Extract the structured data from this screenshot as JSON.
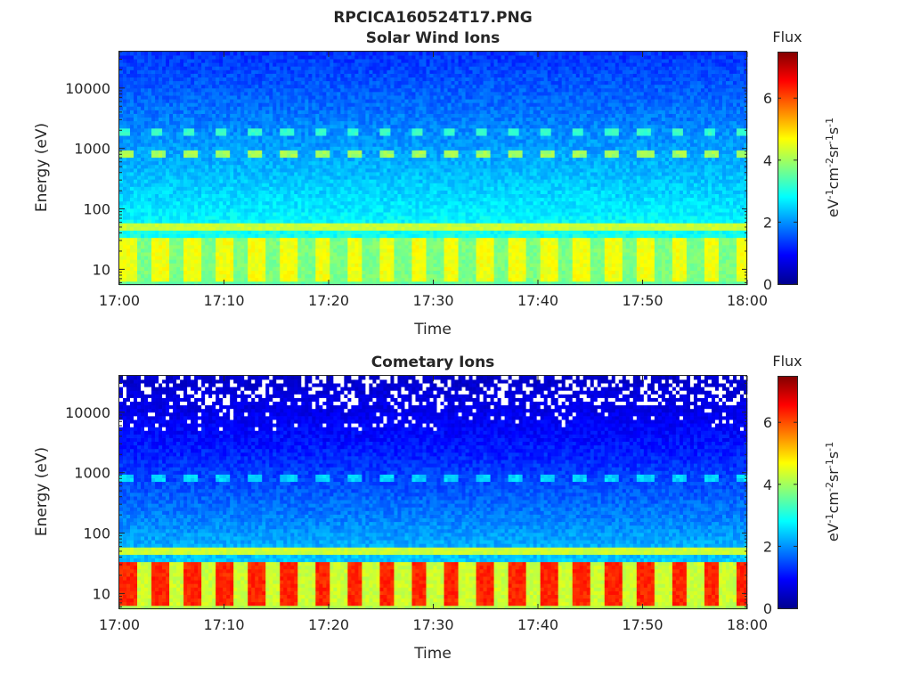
{
  "figure_title": "RPCICA160524T17.PNG",
  "colormap": [
    "#00008f",
    "#0000ff",
    "#0080ff",
    "#00ffff",
    "#80ff80",
    "#ffff00",
    "#ff8000",
    "#ff0000",
    "#800000"
  ],
  "chart_data": [
    {
      "type": "heatmap",
      "title": "Solar Wind Ions",
      "xlabel": "Time",
      "ylabel": "Energy (eV)",
      "x_range": [
        "17:00",
        "18:00"
      ],
      "x_ticks": [
        "17:00",
        "17:10",
        "17:20",
        "17:30",
        "17:40",
        "17:50",
        "18:00"
      ],
      "y_scale": "log",
      "y_range": [
        5.5,
        40000
      ],
      "y_ticks": [
        {
          "value": 10,
          "label": "10"
        },
        {
          "value": 100,
          "label": "100"
        },
        {
          "value": 1000,
          "label": "1000"
        },
        {
          "value": 10000,
          "label": "10000"
        }
      ],
      "features": {
        "background_high_energy": 1.3,
        "background_low_energy": 3.6,
        "band_1000eV": {
          "energy": 850,
          "flux": 4.0,
          "period_min": 3.1
        },
        "band_1800eV": {
          "energy": 1800,
          "flux": 3.2,
          "period_min": 3.1
        },
        "band_50eV": {
          "energy": 50,
          "flux": 4.3
        },
        "low_energy_pulses": {
          "energy_range": [
            6,
            35
          ],
          "flux_peak": 4.6,
          "flux_trough": 3.7,
          "period_min": 3.1
        },
        "missing_data": false
      },
      "colorbar": {
        "label": "Flux",
        "units": "eV-1cm-2sr-1s-1",
        "range": [
          0,
          7.5
        ],
        "ticks": [
          0,
          2,
          4,
          6
        ]
      }
    },
    {
      "type": "heatmap",
      "title": "Cometary Ions",
      "xlabel": "Time",
      "ylabel": "Energy (eV)",
      "x_range": [
        "17:00",
        "18:00"
      ],
      "x_ticks": [
        "17:00",
        "17:10",
        "17:20",
        "17:30",
        "17:40",
        "17:50",
        "18:00"
      ],
      "y_scale": "log",
      "y_range": [
        5.5,
        40000
      ],
      "y_ticks": [
        {
          "value": 10,
          "label": "10"
        },
        {
          "value": 100,
          "label": "100"
        },
        {
          "value": 1000,
          "label": "1000"
        },
        {
          "value": 10000,
          "label": "10000"
        }
      ],
      "features": {
        "background_high_energy": 0.4,
        "background_low_energy": 3.2,
        "band_1000eV": {
          "energy": 850,
          "flux": 2.5,
          "period_min": 3.1
        },
        "band_50eV": {
          "energy": 50,
          "flux": 4.3
        },
        "low_energy_pulses": {
          "energy_range": [
            6,
            35
          ],
          "flux_peak": 6.3,
          "flux_trough": 4.3,
          "period_min": 3.1
        },
        "missing_data": true
      },
      "colorbar": {
        "label": "Flux",
        "units": "eV-1cm-2sr-1s-1",
        "range": [
          0,
          7.5
        ],
        "ticks": [
          0,
          2,
          4,
          6
        ]
      }
    }
  ]
}
